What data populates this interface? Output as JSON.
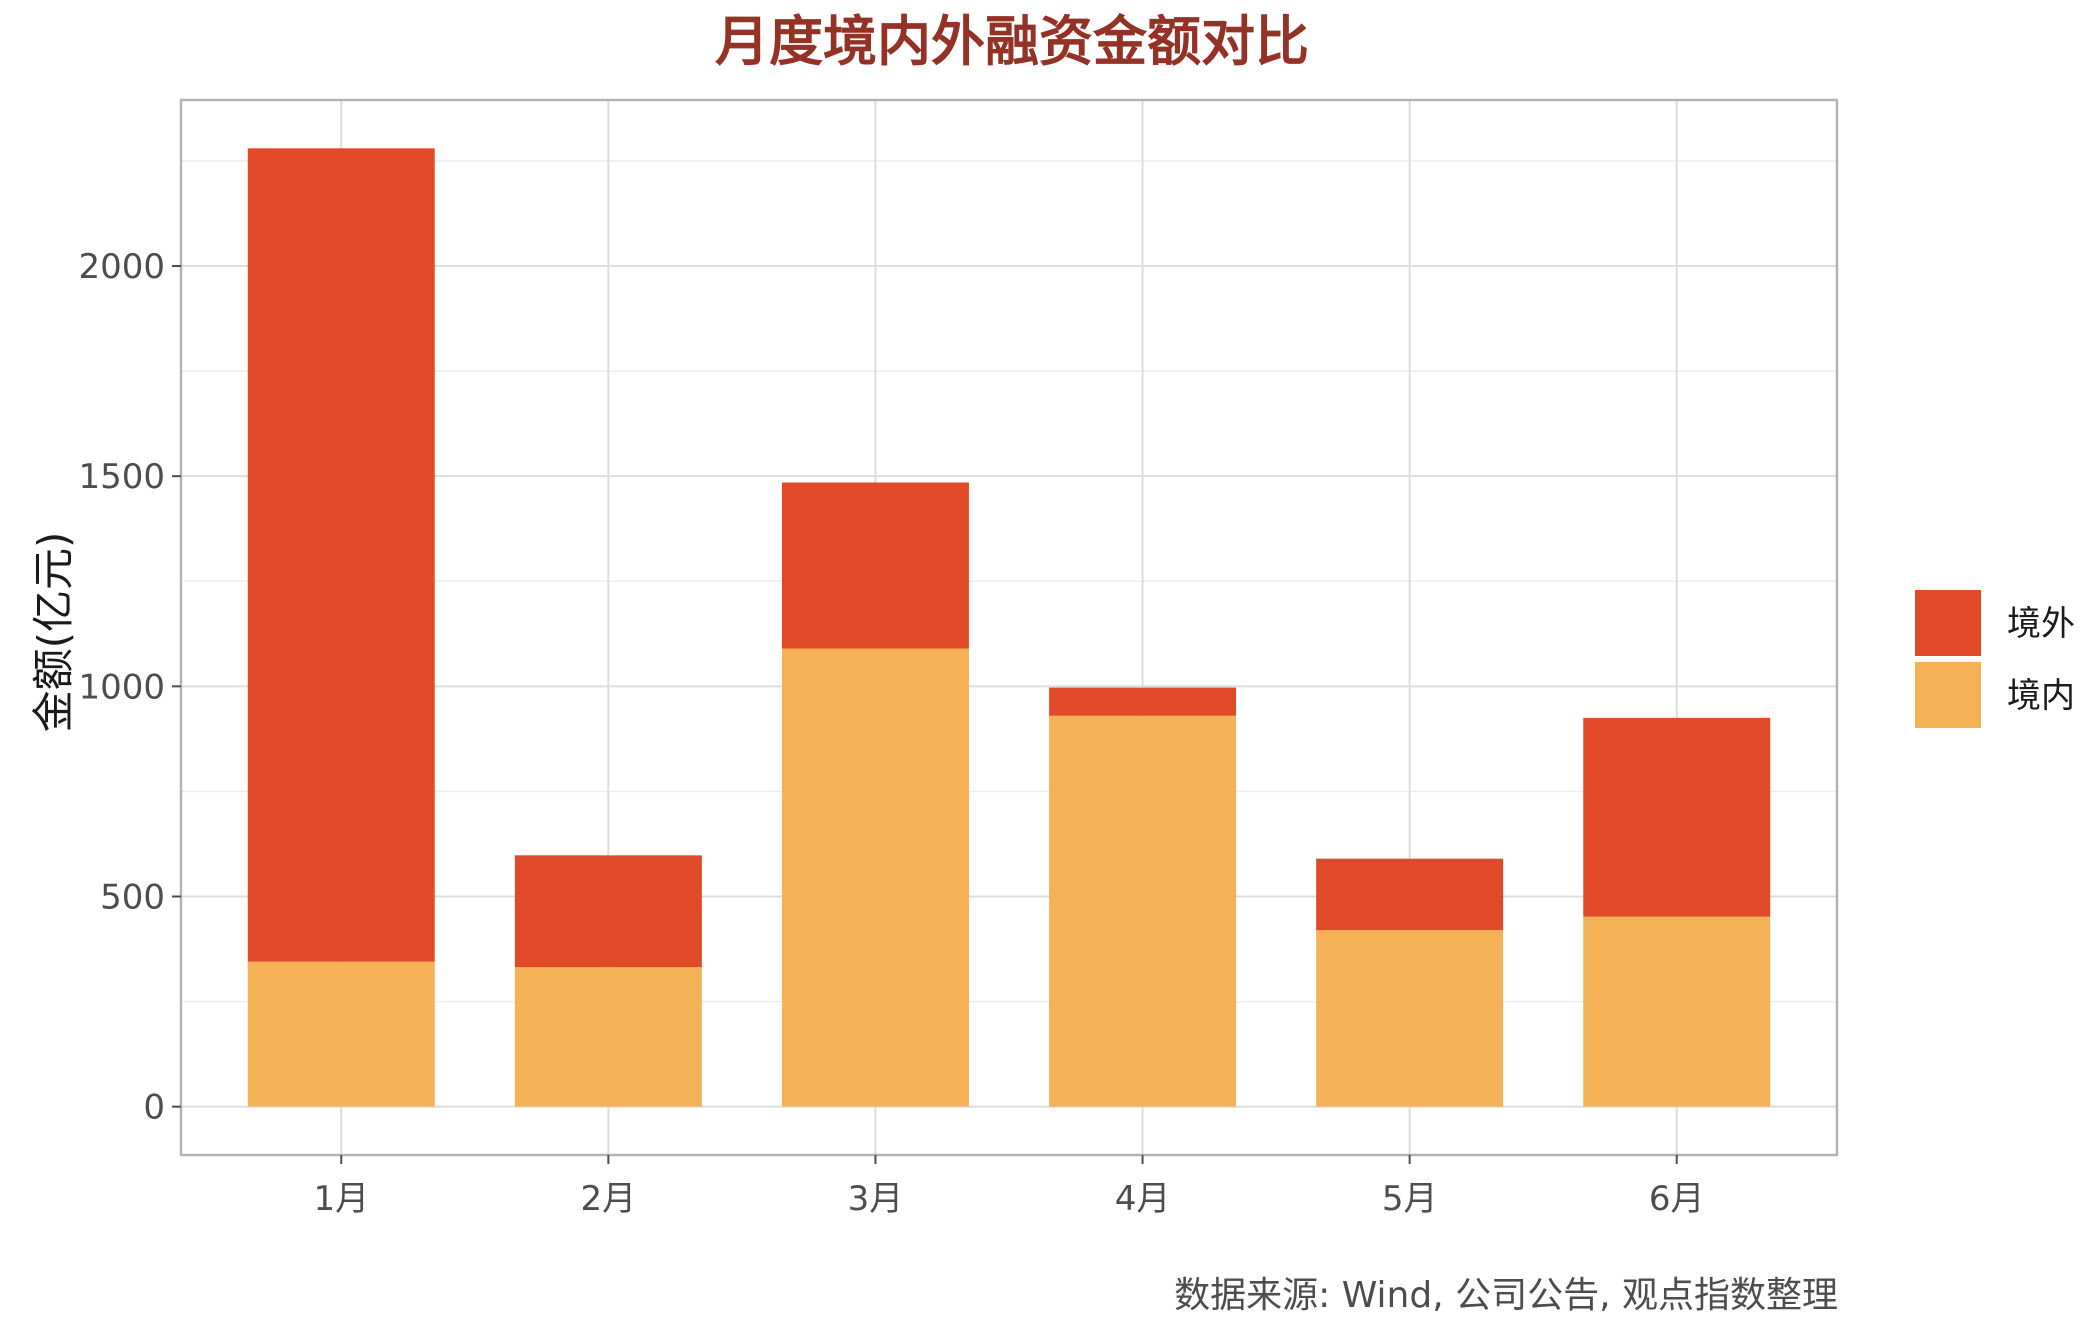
{
  "chart_data": {
    "type": "bar",
    "stacked": true,
    "title": "月度境内外融资金额对比",
    "xlabel": "",
    "ylabel": "金额(亿元)",
    "categories": [
      "1月",
      "2月",
      "3月",
      "4月",
      "5月",
      "6月"
    ],
    "series": [
      {
        "name": "境内",
        "color": "#F5B155",
        "values": [
          345,
          332,
          1090,
          930,
          420,
          452
        ]
      },
      {
        "name": "境外",
        "color": "#E04A29",
        "values": [
          1935,
          266,
          395,
          67,
          170,
          473
        ]
      }
    ],
    "ylim": [
      -115,
      2395
    ],
    "yticks": [
      0,
      500,
      1000,
      1500,
      2000
    ],
    "grid": true,
    "legend": {
      "placement": "right",
      "order": [
        "境外",
        "境内"
      ]
    },
    "caption": "数据来源: Wind, 公司公告, 观点指数整理"
  }
}
